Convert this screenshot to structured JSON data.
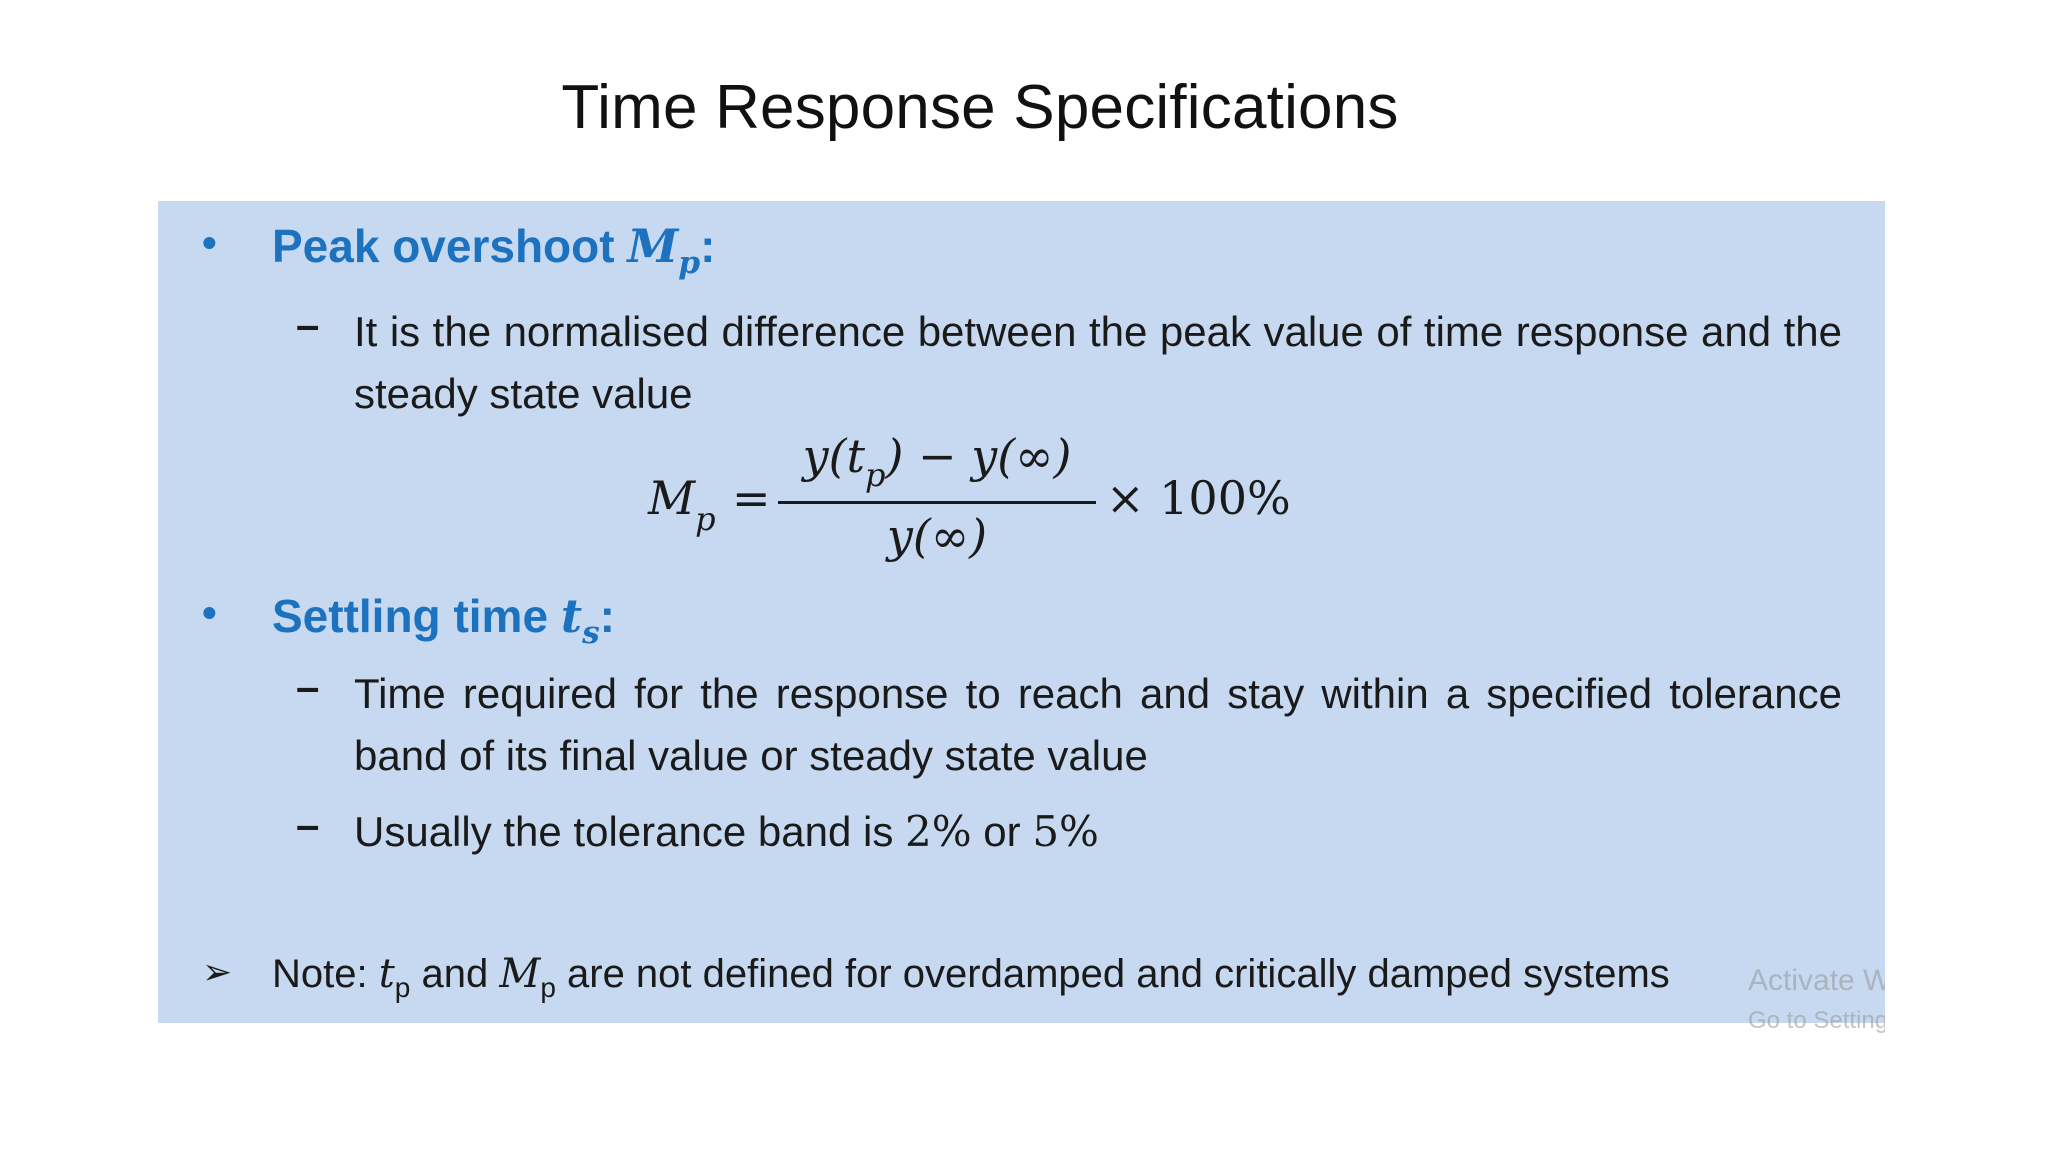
{
  "slide": {
    "title": "Time Response Specifications"
  },
  "section1": {
    "bullet": "•",
    "heading": "Peak overshoot ",
    "heading_var": "M",
    "heading_var_sub": "p",
    "heading_colon": ":",
    "dash": "–",
    "text": "It is the normalised difference between the peak value of time response and the steady state value"
  },
  "equation": {
    "lhs": "M",
    "lhs_sub": "p",
    "equals": "=",
    "num_part1": "y(t",
    "num_sub": "p",
    "num_part2": ") − y(∞)",
    "den": "y(∞)",
    "times": "× 100%"
  },
  "section2": {
    "bullet": "•",
    "heading": "Settling time ",
    "heading_var": "t",
    "heading_var_sub": "s",
    "heading_colon": ":",
    "items": [
      {
        "dash": "–",
        "text": "Time required for the response to reach and stay within a specified tolerance band of its final value or steady state value"
      },
      {
        "dash": "–",
        "text_before": "Usually the tolerance band is ",
        "value1": "2%",
        "text_mid": " or ",
        "value2": "5%"
      }
    ]
  },
  "note": {
    "arrow": "➢",
    "label": "Note: ",
    "var1": "t",
    "var1_sub": "p",
    "text_mid": " and ",
    "var2": "M",
    "var2_sub": "p",
    "text_end": " are not defined for overdamped and critically damped systems"
  },
  "watermark": {
    "line1": "Activate Windows",
    "line2": "Go to Settings to activate Windows."
  },
  "colors": {
    "box_background": "#c6d9f0",
    "heading_blue": "#1d72c0"
  }
}
